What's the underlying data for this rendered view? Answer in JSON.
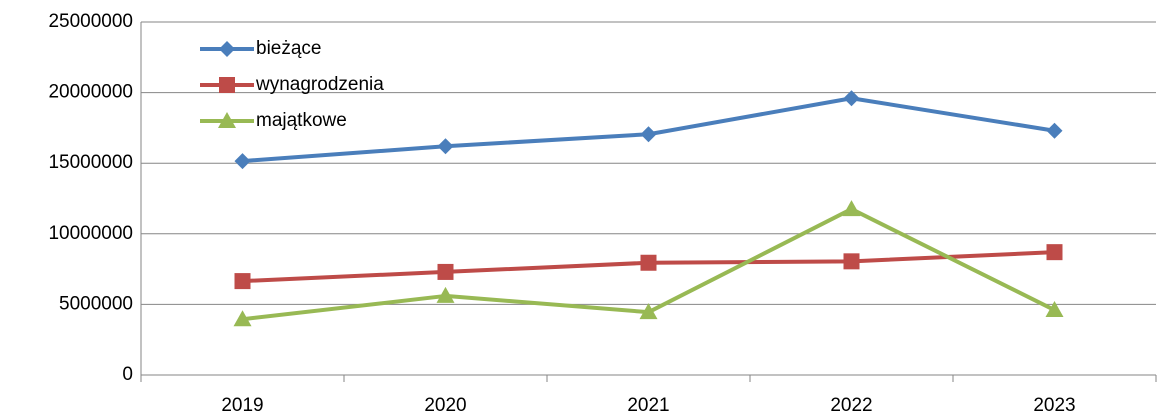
{
  "chart_data": {
    "type": "line",
    "categories": [
      "2019",
      "2020",
      "2021",
      "2022",
      "2023"
    ],
    "series": [
      {
        "name": "bieżące",
        "color": "#4a7ebb",
        "marker": "diamond",
        "values": [
          15150000,
          16200000,
          17050000,
          19600000,
          17300000
        ]
      },
      {
        "name": "wynagrodzenia",
        "color": "#be4b48",
        "marker": "square",
        "values": [
          6650000,
          7300000,
          7950000,
          8050000,
          8700000
        ]
      },
      {
        "name": "majątkowe",
        "color": "#98b954",
        "marker": "triangle",
        "values": [
          3950000,
          5600000,
          4450000,
          11750000,
          4600000
        ]
      }
    ],
    "ylim": [
      0,
      25000000
    ],
    "yticks": [
      0,
      5000000,
      10000000,
      15000000,
      20000000,
      25000000
    ],
    "grid": true,
    "legend": "top-left"
  }
}
